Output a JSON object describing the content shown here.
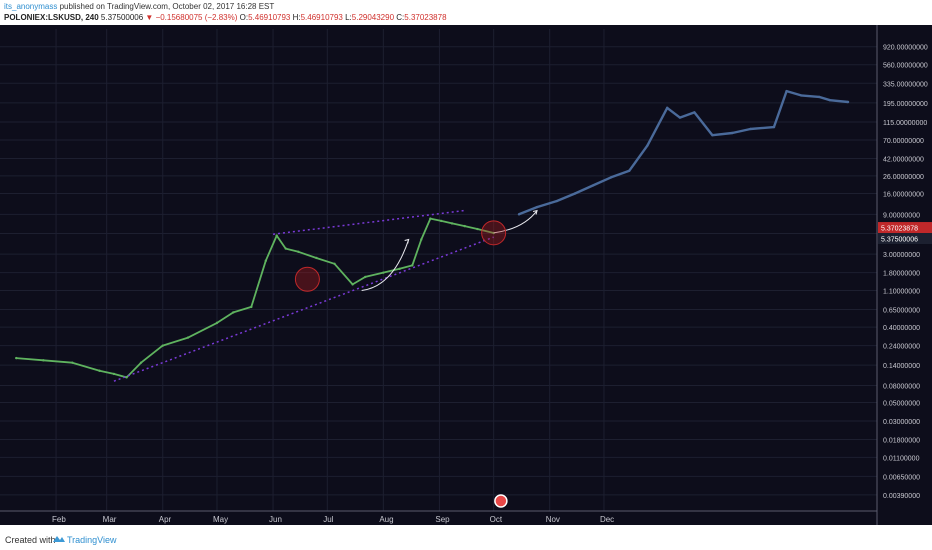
{
  "header": {
    "author": "its_anonymass",
    "published_text": "published on TradingView.com, October 02, 2017 16:28 EST",
    "symbol": "POLONIEX:LSKUSD, 240",
    "last": "5.37500006",
    "change": "▼ −0.15680075 (−2.83%)",
    "o_label": "O:",
    "o_val": "5.46910793",
    "h_label": "H:",
    "h_val": "5.46910793",
    "l_label": "L:",
    "l_val": "5.29043290",
    "c_label": "C:",
    "c_val": "5.37023878"
  },
  "footer": {
    "created": "Created with",
    "brand": "TradingView",
    "logo_icon": "tradingview-cloud-icon"
  },
  "colors": {
    "background": "#0d0d1b",
    "candle_up": "#5fb35f",
    "candle_down": "#c84040",
    "projection": "#4a6a9a",
    "channel": "#7a3ad8",
    "price_tag_red": "#c0282a",
    "price_tag_dark": "#1c2030"
  },
  "chart_data": {
    "type": "line",
    "scale": "log",
    "grid": true,
    "ylim": [
      0.0025,
      1500
    ],
    "y_ticks": [
      "920.00000000",
      "560.00000000",
      "335.00000000",
      "195.00000000",
      "115.00000000",
      "70.00000000",
      "42.00000000",
      "26.00000000",
      "16.00000000",
      "9.00000000",
      "5.30000000",
      "3.00000000",
      "1.80000000",
      "1.10000000",
      "0.65000000",
      "0.40000000",
      "0.24000000",
      "0.14000000",
      "0.08000000",
      "0.05000000",
      "0.03000000",
      "0.01800000",
      "0.01100000",
      "0.00650000",
      "0.00390000"
    ],
    "x_ticks": [
      "Feb",
      "Mar",
      "Apr",
      "May",
      "Jun",
      "Jul",
      "Aug",
      "Sep",
      "Oct",
      "Nov",
      "Dec"
    ],
    "price_labels": [
      {
        "value": "5.37023878",
        "style": "red"
      },
      {
        "value": "5.37500006",
        "style": "dark"
      }
    ],
    "series": [
      {
        "kind": "price",
        "x": [
          "2017-01-10",
          "2017-01-25",
          "2017-02-10",
          "2017-02-25",
          "2017-03-05",
          "2017-03-12",
          "2017-03-20",
          "2017-04-01",
          "2017-04-15",
          "2017-05-01",
          "2017-05-10",
          "2017-05-20",
          "2017-05-28",
          "2017-06-03",
          "2017-06-08",
          "2017-06-15",
          "2017-06-25",
          "2017-07-05",
          "2017-07-15",
          "2017-07-22",
          "2017-08-01",
          "2017-08-10",
          "2017-08-17",
          "2017-08-22",
          "2017-08-27",
          "2017-09-02",
          "2017-09-08",
          "2017-09-15",
          "2017-09-22",
          "2017-10-01"
        ],
        "y": [
          0.17,
          0.16,
          0.15,
          0.12,
          0.11,
          0.1,
          0.15,
          0.24,
          0.3,
          0.45,
          0.6,
          0.7,
          2.5,
          5.0,
          3.5,
          3.2,
          2.7,
          2.3,
          1.3,
          1.6,
          1.8,
          2.0,
          2.2,
          4.5,
          8.0,
          7.5,
          7.0,
          6.5,
          6.0,
          5.37
        ]
      },
      {
        "kind": "projection",
        "x": [
          "2017-10-15",
          "2017-10-25",
          "2017-11-05",
          "2017-11-15",
          "2017-11-25",
          "2017-12-05",
          "2017-12-15",
          "2017-12-25",
          "2018-01-05",
          "2018-01-12",
          "2018-01-20",
          "2018-01-30",
          "2018-02-10",
          "2018-02-20",
          "2018-03-05",
          "2018-03-12",
          "2018-03-20",
          "2018-03-30",
          "2018-04-05",
          "2018-04-15"
        ],
        "y": [
          9,
          11,
          13,
          16,
          20,
          25,
          30,
          60,
          170,
          130,
          150,
          80,
          85,
          95,
          100,
          270,
          240,
          230,
          210,
          200
        ]
      }
    ],
    "annotations": [
      {
        "kind": "trendline",
        "style": "dotted",
        "from": [
          "2017-03-05",
          0.09
        ],
        "to": [
          "2017-10-01",
          4.8
        ]
      },
      {
        "kind": "trendline",
        "style": "dotted",
        "from": [
          "2017-06-01",
          5.2
        ],
        "to": [
          "2017-09-15",
          10
        ]
      },
      {
        "kind": "arrow",
        "from": [
          "2017-07-20",
          1.1
        ],
        "to": [
          "2017-08-15",
          4.5
        ]
      },
      {
        "kind": "arrow",
        "from": [
          "2017-10-01",
          5.4
        ],
        "to": [
          "2017-10-25",
          10
        ]
      },
      {
        "kind": "circle",
        "at": [
          "2017-06-20",
          1.5
        ]
      },
      {
        "kind": "circle",
        "at": [
          "2017-10-01",
          5.4
        ]
      }
    ]
  }
}
